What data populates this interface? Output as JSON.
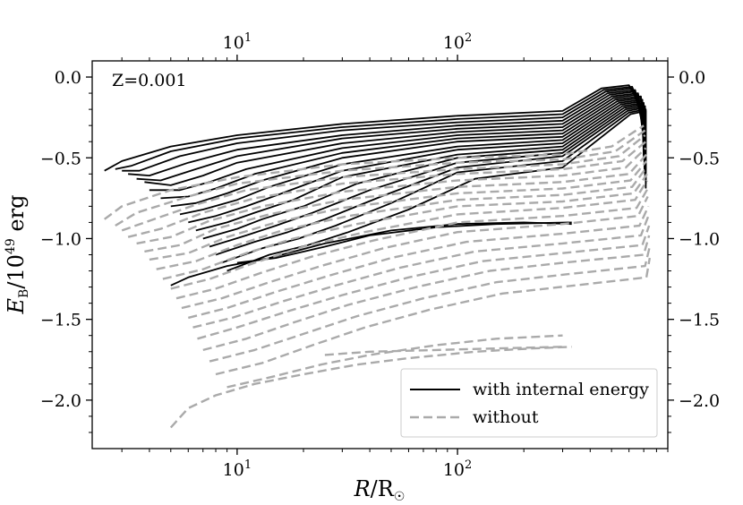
{
  "chart_data": {
    "type": "line",
    "annotation": "Z=0.001",
    "xlabel": "R/R☉",
    "ylabel": "E_B/10^49 erg",
    "xscale": "log",
    "xlim": [
      2.2,
      900
    ],
    "ylim": [
      -2.3,
      0.1
    ],
    "grid": false,
    "legend_position": "lower-right",
    "x_ticks": [
      {
        "value": 10,
        "base": "10",
        "exp": "1"
      },
      {
        "value": 100,
        "base": "10",
        "exp": "2"
      }
    ],
    "y_ticks": [
      {
        "value": 0.0,
        "label": "0.0"
      },
      {
        "value": -0.5,
        "label": "−0.5"
      },
      {
        "value": -1.0,
        "label": "−1.0"
      },
      {
        "value": -1.5,
        "label": "−1.5"
      },
      {
        "value": -2.0,
        "label": "−2.0"
      }
    ],
    "colors": {
      "with_internal": "#000000",
      "without": "#aaaaaa"
    },
    "legend": [
      {
        "label": "with internal energy",
        "style": "solid",
        "color": "#000000"
      },
      {
        "label": "without",
        "style": "dashed",
        "color": "#aaaaaa"
      }
    ],
    "series": [
      {
        "group": "with internal energy",
        "style": "solid",
        "tracks": [
          {
            "x": [
              2.5,
              3.0,
              5,
              10,
              30,
              100,
              300,
              450,
              600,
              700
            ],
            "y": [
              -0.58,
              -0.52,
              -0.43,
              -0.36,
              -0.29,
              -0.24,
              -0.21,
              -0.07,
              -0.05,
              -0.22
            ]
          },
          {
            "x": [
              2.8,
              3.3,
              5,
              10,
              30,
              100,
              300,
              460,
              620,
              700
            ],
            "y": [
              -0.57,
              -0.55,
              -0.46,
              -0.38,
              -0.31,
              -0.26,
              -0.23,
              -0.08,
              -0.06,
              -0.24
            ]
          },
          {
            "x": [
              3.0,
              3.6,
              5.5,
              10,
              30,
              100,
              300,
              470,
              620,
              700
            ],
            "y": [
              -0.58,
              -0.58,
              -0.49,
              -0.41,
              -0.33,
              -0.28,
              -0.25,
              -0.09,
              -0.07,
              -0.27
            ]
          },
          {
            "x": [
              3.2,
              4,
              6,
              10,
              30,
              100,
              300,
              480,
              640,
              700
            ],
            "y": [
              -0.6,
              -0.61,
              -0.53,
              -0.45,
              -0.36,
              -0.3,
              -0.27,
              -0.1,
              -0.08,
              -0.3
            ]
          },
          {
            "x": [
              3.5,
              4.5,
              6.5,
              10,
              30,
              100,
              300,
              490,
              640,
              700
            ],
            "y": [
              -0.63,
              -0.64,
              -0.57,
              -0.49,
              -0.38,
              -0.32,
              -0.29,
              -0.11,
              -0.09,
              -0.33
            ]
          },
          {
            "x": [
              3.8,
              5,
              7,
              10,
              30,
              100,
              300,
              500,
              660,
              700
            ],
            "y": [
              -0.65,
              -0.67,
              -0.61,
              -0.53,
              -0.41,
              -0.34,
              -0.31,
              -0.12,
              -0.1,
              -0.36
            ]
          },
          {
            "x": [
              4,
              5.5,
              7.5,
              11,
              30,
              100,
              300,
              510,
              660,
              700
            ],
            "y": [
              -0.7,
              -0.7,
              -0.65,
              -0.57,
              -0.44,
              -0.36,
              -0.33,
              -0.13,
              -0.11,
              -0.39
            ]
          },
          {
            "x": [
              4.5,
              6,
              8,
              12,
              30,
              100,
              300,
              520,
              680,
              700
            ],
            "y": [
              -0.75,
              -0.74,
              -0.69,
              -0.6,
              -0.47,
              -0.38,
              -0.35,
              -0.14,
              -0.12,
              -0.42
            ]
          },
          {
            "x": [
              5,
              6.5,
              9,
              13,
              30,
              100,
              300,
              530,
              680,
              700
            ],
            "y": [
              -0.8,
              -0.78,
              -0.72,
              -0.64,
              -0.5,
              -0.4,
              -0.37,
              -0.15,
              -0.13,
              -0.45
            ]
          },
          {
            "x": [
              5.5,
              7,
              10,
              14,
              30,
              100,
              300,
              540,
              690,
              700
            ],
            "y": [
              -0.85,
              -0.82,
              -0.76,
              -0.68,
              -0.54,
              -0.43,
              -0.39,
              -0.16,
              -0.14,
              -0.48
            ]
          },
          {
            "x": [
              6,
              8,
              11,
              16,
              30,
              100,
              300,
              550,
              690,
              700
            ],
            "y": [
              -0.9,
              -0.86,
              -0.8,
              -0.72,
              -0.58,
              -0.45,
              -0.41,
              -0.17,
              -0.15,
              -0.51
            ]
          },
          {
            "x": [
              6.5,
              9,
              12,
              18,
              30,
              100,
              300,
              560,
              700,
              705
            ],
            "y": [
              -0.95,
              -0.9,
              -0.84,
              -0.76,
              -0.62,
              -0.48,
              -0.43,
              -0.18,
              -0.16,
              -0.54
            ]
          },
          {
            "x": [
              7,
              10,
              13,
              20,
              35,
              100,
              300,
              570,
              700,
              705
            ],
            "y": [
              -1.0,
              -0.94,
              -0.88,
              -0.8,
              -0.66,
              -0.5,
              -0.45,
              -0.19,
              -0.17,
              -0.57
            ]
          },
          {
            "x": [
              7.5,
              11,
              15,
              22,
              40,
              100,
              300,
              580,
              710,
              710
            ],
            "y": [
              -1.05,
              -0.98,
              -0.92,
              -0.84,
              -0.7,
              -0.53,
              -0.47,
              -0.2,
              -0.18,
              -0.6
            ]
          },
          {
            "x": [
              8,
              12,
              17,
              25,
              45,
              100,
              300,
              590,
              710,
              710
            ],
            "y": [
              -1.1,
              -1.02,
              -0.96,
              -0.88,
              -0.74,
              -0.56,
              -0.49,
              -0.21,
              -0.19,
              -0.63
            ]
          },
          {
            "x": [
              8.5,
              13,
              19,
              28,
              50,
              100,
              300,
              600,
              715,
              715
            ],
            "y": [
              -1.15,
              -1.06,
              -1.0,
              -0.92,
              -0.78,
              -0.59,
              -0.52,
              -0.22,
              -0.2,
              -0.66
            ]
          },
          {
            "x": [
              9,
              14,
              21,
              32,
              60,
              120,
              300,
              610,
              715,
              715
            ],
            "y": [
              -1.2,
              -1.1,
              -1.04,
              -0.96,
              -0.82,
              -0.63,
              -0.56,
              -0.23,
              -0.21,
              -0.69
            ]
          },
          {
            "x": [
              5,
              6,
              9,
              14,
              25,
              50,
              100,
              200,
              330
            ],
            "y": [
              -1.29,
              -1.24,
              -1.17,
              -1.12,
              -1.03,
              -0.95,
              -0.91,
              -0.9,
              -0.91
            ]
          },
          {
            "x": [
              10,
              15,
              25,
              40,
              80,
              150,
              330
            ],
            "y": [
              -1.15,
              -1.12,
              -1.05,
              -0.98,
              -0.93,
              -0.91,
              -0.9
            ]
          }
        ]
      },
      {
        "group": "without",
        "style": "dashed",
        "tracks": [
          {
            "x": [
              2.5,
              3,
              5,
              10,
              30,
              100,
              300,
              500,
              700
            ],
            "y": [
              -0.88,
              -0.8,
              -0.7,
              -0.62,
              -0.54,
              -0.5,
              -0.48,
              -0.43,
              -0.3
            ]
          },
          {
            "x": [
              2.8,
              3.5,
              6,
              10,
              30,
              100,
              300,
              520,
              710
            ],
            "y": [
              -0.92,
              -0.84,
              -0.74,
              -0.66,
              -0.58,
              -0.53,
              -0.51,
              -0.46,
              -0.33
            ]
          },
          {
            "x": [
              3,
              4,
              6.5,
              11,
              30,
              100,
              300,
              540,
              710
            ],
            "y": [
              -0.95,
              -0.89,
              -0.79,
              -0.7,
              -0.62,
              -0.57,
              -0.54,
              -0.49,
              -0.36
            ]
          },
          {
            "x": [
              3.2,
              4.5,
              7,
              12,
              30,
              100,
              300,
              560,
              715
            ],
            "y": [
              -0.99,
              -0.94,
              -0.84,
              -0.75,
              -0.66,
              -0.6,
              -0.57,
              -0.52,
              -0.4
            ]
          },
          {
            "x": [
              3.5,
              5,
              7.5,
              13,
              30,
              100,
              300,
              580,
              715
            ],
            "y": [
              -1.03,
              -0.99,
              -0.89,
              -0.8,
              -0.71,
              -0.64,
              -0.61,
              -0.56,
              -0.44
            ]
          },
          {
            "x": [
              3.8,
              5.5,
              8,
              14,
              30,
              100,
              300,
              600,
              720
            ],
            "y": [
              -1.08,
              -1.04,
              -0.94,
              -0.85,
              -0.76,
              -0.68,
              -0.65,
              -0.6,
              -0.48
            ]
          },
          {
            "x": [
              4,
              6,
              9,
              15,
              30,
              100,
              300,
              610,
              720
            ],
            "y": [
              -1.13,
              -1.09,
              -0.99,
              -0.9,
              -0.81,
              -0.72,
              -0.69,
              -0.64,
              -0.52
            ]
          },
          {
            "x": [
              4.3,
              6.5,
              10,
              16,
              32,
              100,
              300,
              620,
              720
            ],
            "y": [
              -1.19,
              -1.14,
              -1.04,
              -0.95,
              -0.86,
              -0.76,
              -0.73,
              -0.68,
              -0.56
            ]
          },
          {
            "x": [
              4.6,
              7,
              11,
              18,
              35,
              100,
              300,
              630,
              725
            ],
            "y": [
              -1.25,
              -1.19,
              -1.09,
              -1.0,
              -0.91,
              -0.8,
              -0.77,
              -0.72,
              -0.6
            ]
          },
          {
            "x": [
              5,
              7.5,
              12,
              20,
              38,
              100,
              300,
              640,
              725
            ],
            "y": [
              -1.31,
              -1.25,
              -1.15,
              -1.05,
              -0.96,
              -0.85,
              -0.81,
              -0.76,
              -0.64
            ]
          },
          {
            "x": [
              5.3,
              8,
              13,
              22,
              42,
              100,
              300,
              650,
              730
            ],
            "y": [
              -1.37,
              -1.31,
              -1.21,
              -1.11,
              -1.01,
              -0.9,
              -0.86,
              -0.81,
              -0.69
            ]
          },
          {
            "x": [
              5.6,
              8.5,
              14,
              24,
              46,
              100,
              300,
              660,
              730
            ],
            "y": [
              -1.43,
              -1.37,
              -1.27,
              -1.17,
              -1.06,
              -0.96,
              -0.91,
              -0.86,
              -0.74
            ]
          },
          {
            "x": [
              6,
              9,
              15,
              26,
              50,
              110,
              300,
              670,
              735
            ],
            "y": [
              -1.49,
              -1.43,
              -1.33,
              -1.23,
              -1.12,
              -1.02,
              -0.97,
              -0.92,
              -0.8
            ]
          },
          {
            "x": [
              6.3,
              9.5,
              16,
              28,
              55,
              120,
              300,
              680,
              735
            ],
            "y": [
              -1.55,
              -1.49,
              -1.39,
              -1.29,
              -1.18,
              -1.08,
              -1.03,
              -0.98,
              -0.86
            ]
          },
          {
            "x": [
              6.6,
              10,
              17,
              30,
              60,
              130,
              300,
              690,
              740
            ],
            "y": [
              -1.62,
              -1.55,
              -1.45,
              -1.35,
              -1.24,
              -1.14,
              -1.09,
              -1.04,
              -0.92
            ]
          },
          {
            "x": [
              7,
              11,
              18,
              32,
              65,
              140,
              300,
              700,
              740
            ],
            "y": [
              -1.69,
              -1.62,
              -1.52,
              -1.41,
              -1.3,
              -1.2,
              -1.15,
              -1.1,
              -0.98
            ]
          },
          {
            "x": [
              7.5,
              12,
              20,
              35,
              70,
              150,
              320,
              710,
              745
            ],
            "y": [
              -1.76,
              -1.69,
              -1.59,
              -1.48,
              -1.37,
              -1.27,
              -1.22,
              -1.17,
              -1.05
            ]
          },
          {
            "x": [
              8,
              13,
              22,
              38,
              75,
              160,
              340,
              720,
              745
            ],
            "y": [
              -1.84,
              -1.77,
              -1.66,
              -1.55,
              -1.44,
              -1.34,
              -1.29,
              -1.24,
              -1.12
            ]
          },
          {
            "x": [
              5,
              6,
              8,
              12,
              20,
              35,
              60,
              120,
              220,
              330
            ],
            "y": [
              -2.17,
              -2.05,
              -1.97,
              -1.9,
              -1.84,
              -1.78,
              -1.74,
              -1.7,
              -1.68,
              -1.67
            ]
          },
          {
            "x": [
              9,
              14,
              24,
              40,
              80,
              150,
              300
            ],
            "y": [
              -1.92,
              -1.86,
              -1.78,
              -1.72,
              -1.66,
              -1.62,
              -1.6
            ]
          },
          {
            "x": [
              25,
              40,
              80,
              150,
              300
            ],
            "y": [
              -1.72,
              -1.7,
              -1.69,
              -1.68,
              -1.67
            ]
          }
        ]
      }
    ]
  }
}
